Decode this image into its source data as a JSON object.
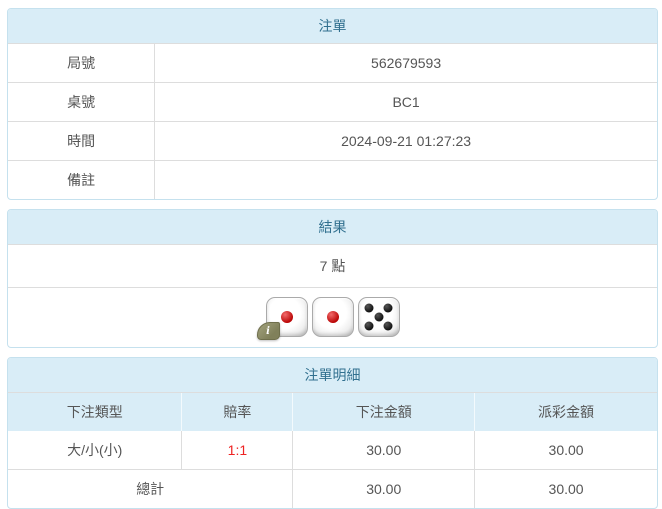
{
  "panels": {
    "bet_slip": {
      "title": "注單",
      "rows": [
        {
          "label": "局號",
          "value": "562679593"
        },
        {
          "label": "桌號",
          "value": "BC1"
        },
        {
          "label": "時間",
          "value": "2024-09-21 01:27:23"
        },
        {
          "label": "備註",
          "value": ""
        }
      ]
    },
    "result": {
      "title": "結果",
      "points": "7 點",
      "dice": [
        1,
        1,
        5
      ],
      "info_icon": "i"
    },
    "bet_details": {
      "title": "注單明細",
      "columns": [
        "下注類型",
        "賠率",
        "下注金額",
        "派彩金額"
      ],
      "rows": [
        {
          "bet_type": "大/小(小)",
          "odds": "1:1",
          "bet_amount": "30.00",
          "payout": "30.00"
        }
      ],
      "total": {
        "label": "總計",
        "bet_amount": "30.00",
        "payout": "30.00"
      }
    }
  },
  "colors": {
    "header_bg": "#d9edf7",
    "header_text": "#31708f",
    "panel_border": "#c5e1ee",
    "row_divider": "#dddddd",
    "body_text": "#555555",
    "odds_red": "#ee2222"
  }
}
